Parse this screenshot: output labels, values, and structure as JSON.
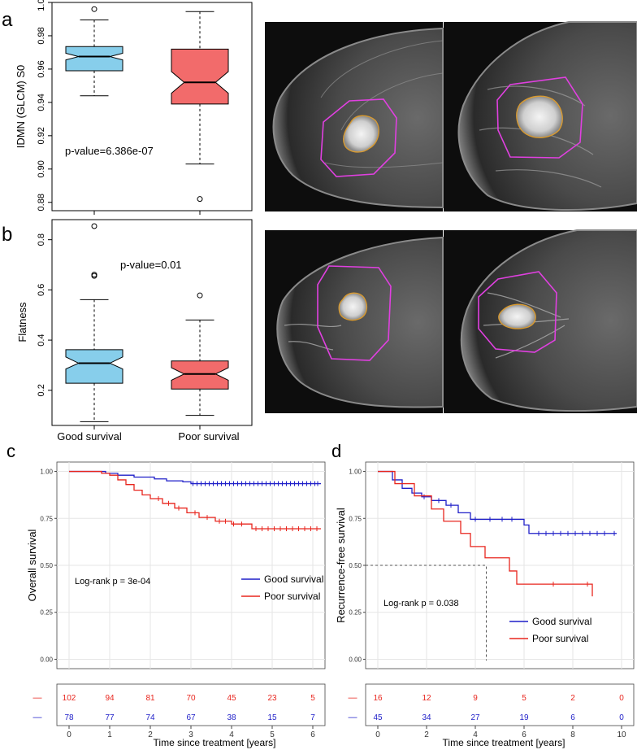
{
  "panel_labels": {
    "a": "a",
    "b": "b",
    "c": "c",
    "d": "d"
  },
  "colors": {
    "good_box": "#87CEEB",
    "poor_box": "#F26B6B",
    "good_curve": "#1F1FC8",
    "poor_curve": "#E8261E",
    "mri_bg": "#101010",
    "roi_outer": "#E040E0",
    "roi_inner": "#D89A30"
  },
  "chart_data": [
    {
      "id": "a",
      "type": "boxplot",
      "ylabel": "IDMN (GLCM) S0",
      "ylim": [
        0.875,
        1.0
      ],
      "yticks": [
        "0.88",
        "0.90",
        "0.92",
        "0.94",
        "0.96",
        "0.98",
        "1.00"
      ],
      "yticks_values": [
        0.88,
        0.9,
        0.92,
        0.94,
        0.96,
        0.98,
        1.0
      ],
      "annotation": "p-value=6.386e-07",
      "groups": [
        {
          "name": "Good survival",
          "whisker_low": 0.944,
          "q1": 0.959,
          "median": 0.9675,
          "q3": 0.9735,
          "whisker_high": 0.9895,
          "notch_low": 0.9655,
          "notch_high": 0.9695,
          "outliers": [
            0.996
          ]
        },
        {
          "name": "Poor survival",
          "whisker_low": 0.903,
          "q1": 0.939,
          "median": 0.952,
          "q3": 0.972,
          "whisker_high": 0.9945,
          "notch_low": 0.9455,
          "notch_high": 0.9585,
          "outliers": [
            0.882
          ]
        }
      ]
    },
    {
      "id": "b",
      "type": "boxplot",
      "ylabel": "Flatness",
      "ylim": [
        0.06,
        0.88
      ],
      "yticks": [
        "0.2",
        "0.4",
        "0.6",
        "0.8"
      ],
      "yticks_values": [
        0.2,
        0.4,
        0.6,
        0.8
      ],
      "annotation": "p-value=0.01",
      "categories": [
        "Good survival",
        "Poor survival"
      ],
      "groups": [
        {
          "name": "Good survival",
          "whisker_low": 0.075,
          "q1": 0.228,
          "median": 0.308,
          "q3": 0.362,
          "whisker_high": 0.561,
          "notch_low": 0.285,
          "notch_high": 0.333,
          "outliers": [
            0.656,
            0.661,
            0.854
          ]
        },
        {
          "name": "Poor survival",
          "whisker_low": 0.1,
          "q1": 0.205,
          "median": 0.265,
          "q3": 0.317,
          "whisker_high": 0.48,
          "notch_low": 0.24,
          "notch_high": 0.29,
          "outliers": [
            0.578
          ]
        }
      ]
    },
    {
      "id": "c",
      "type": "line",
      "ylabel": "Overall survival",
      "xlabel": "Time since treatment [years]",
      "xlim": [
        -0.3,
        6.3
      ],
      "ylim": [
        -0.05,
        1.05
      ],
      "xticks": [
        "0",
        "1",
        "2",
        "3",
        "4",
        "5",
        "6"
      ],
      "xticks_values": [
        0,
        1,
        2,
        3,
        4,
        5,
        6
      ],
      "yticks": [
        "0.00",
        "0.25",
        "0.50",
        "0.75",
        "1.00"
      ],
      "yticks_values": [
        0,
        0.25,
        0.5,
        0.75,
        1.0
      ],
      "annotation": "Log-rank  p = 3e-04",
      "series": [
        {
          "name": "Good survival",
          "color_key": "good_curve",
          "x": [
            0,
            0.5,
            0.9,
            1.2,
            1.6,
            2.1,
            2.4,
            2.8,
            3.0,
            6.2
          ],
          "y": [
            1.0,
            1.0,
            0.99,
            0.98,
            0.97,
            0.96,
            0.95,
            0.945,
            0.935,
            0.935
          ],
          "censor_x": [
            3.05,
            3.15,
            3.25,
            3.35,
            3.45,
            3.55,
            3.65,
            3.75,
            3.85,
            3.95,
            4.05,
            4.15,
            4.25,
            4.35,
            4.45,
            4.55,
            4.65,
            4.75,
            4.85,
            4.95,
            5.05,
            5.15,
            5.25,
            5.35,
            5.45,
            5.55,
            5.65,
            5.75,
            5.85,
            5.95,
            6.05,
            6.12
          ]
        },
        {
          "name": "Poor survival",
          "color_key": "poor_curve",
          "x": [
            0,
            0.5,
            0.8,
            1.0,
            1.2,
            1.4,
            1.6,
            1.8,
            2.0,
            2.3,
            2.6,
            2.9,
            3.2,
            3.6,
            4.0,
            4.5,
            6.2
          ],
          "y": [
            1.0,
            1.0,
            0.99,
            0.98,
            0.955,
            0.93,
            0.9,
            0.875,
            0.855,
            0.83,
            0.805,
            0.78,
            0.755,
            0.735,
            0.72,
            0.695,
            0.695
          ],
          "censor_x": [
            2.2,
            2.45,
            2.7,
            3.1,
            3.4,
            3.7,
            3.85,
            4.05,
            4.25,
            4.6,
            4.75,
            4.9,
            5.05,
            5.2,
            5.35,
            5.5,
            5.65,
            5.8,
            5.95,
            6.1
          ]
        }
      ],
      "risk_table": [
        {
          "color_key": "poor_curve",
          "values": [
            "102",
            "94",
            "81",
            "70",
            "45",
            "23",
            "5"
          ]
        },
        {
          "color_key": "good_curve",
          "values": [
            "78",
            "77",
            "74",
            "67",
            "38",
            "15",
            "7"
          ]
        }
      ]
    },
    {
      "id": "d",
      "type": "line",
      "ylabel": "Recurrence-free survival",
      "xlabel": "Time since treatment [years]",
      "xlim": [
        -0.5,
        10.5
      ],
      "ylim": [
        -0.05,
        1.05
      ],
      "xticks": [
        "0",
        "2",
        "4",
        "6",
        "8",
        "10"
      ],
      "xticks_values": [
        0,
        2,
        4,
        6,
        8,
        10
      ],
      "yticks": [
        "0.00",
        "0.25",
        "0.50",
        "0.75",
        "1.00"
      ],
      "yticks_values": [
        0,
        0.25,
        0.5,
        0.75,
        1.0
      ],
      "annotation": "Log-rank  p = 0.038",
      "median_line": {
        "x": 4.45,
        "y": 0.5
      },
      "series": [
        {
          "name": "Good survival",
          "color_key": "good_curve",
          "x": [
            0,
            0.3,
            0.6,
            1.0,
            1.4,
            1.8,
            2.2,
            2.8,
            3.3,
            3.8,
            5.6,
            6.0,
            6.2,
            9.8
          ],
          "y": [
            1.0,
            1.0,
            0.955,
            0.91,
            0.885,
            0.865,
            0.845,
            0.82,
            0.78,
            0.745,
            0.745,
            0.715,
            0.67,
            0.67
          ],
          "censor_x": [
            1.9,
            2.5,
            3.0,
            4.0,
            4.6,
            5.1,
            5.5,
            6.6,
            6.9,
            7.2,
            7.5,
            7.8,
            8.1,
            8.4,
            8.7,
            9.0,
            9.3,
            9.7
          ]
        },
        {
          "name": "Poor survival",
          "color_key": "poor_curve",
          "x": [
            0,
            0.4,
            0.7,
            1.5,
            2.2,
            2.7,
            3.4,
            3.8,
            4.4,
            5.4,
            5.7,
            8.8
          ],
          "y": [
            1.0,
            1.0,
            0.935,
            0.87,
            0.8,
            0.735,
            0.67,
            0.6,
            0.54,
            0.47,
            0.4,
            0.335
          ],
          "censor_x": [
            7.2,
            8.6
          ]
        }
      ],
      "risk_table": [
        {
          "color_key": "poor_curve",
          "values": [
            "16",
            "12",
            "9",
            "5",
            "2",
            "0"
          ]
        },
        {
          "color_key": "good_curve",
          "values": [
            "45",
            "34",
            "27",
            "19",
            "6",
            "0"
          ]
        }
      ]
    }
  ],
  "legend": {
    "good": "Good survival",
    "poor": "Poor survival"
  },
  "risk_dash": "—"
}
